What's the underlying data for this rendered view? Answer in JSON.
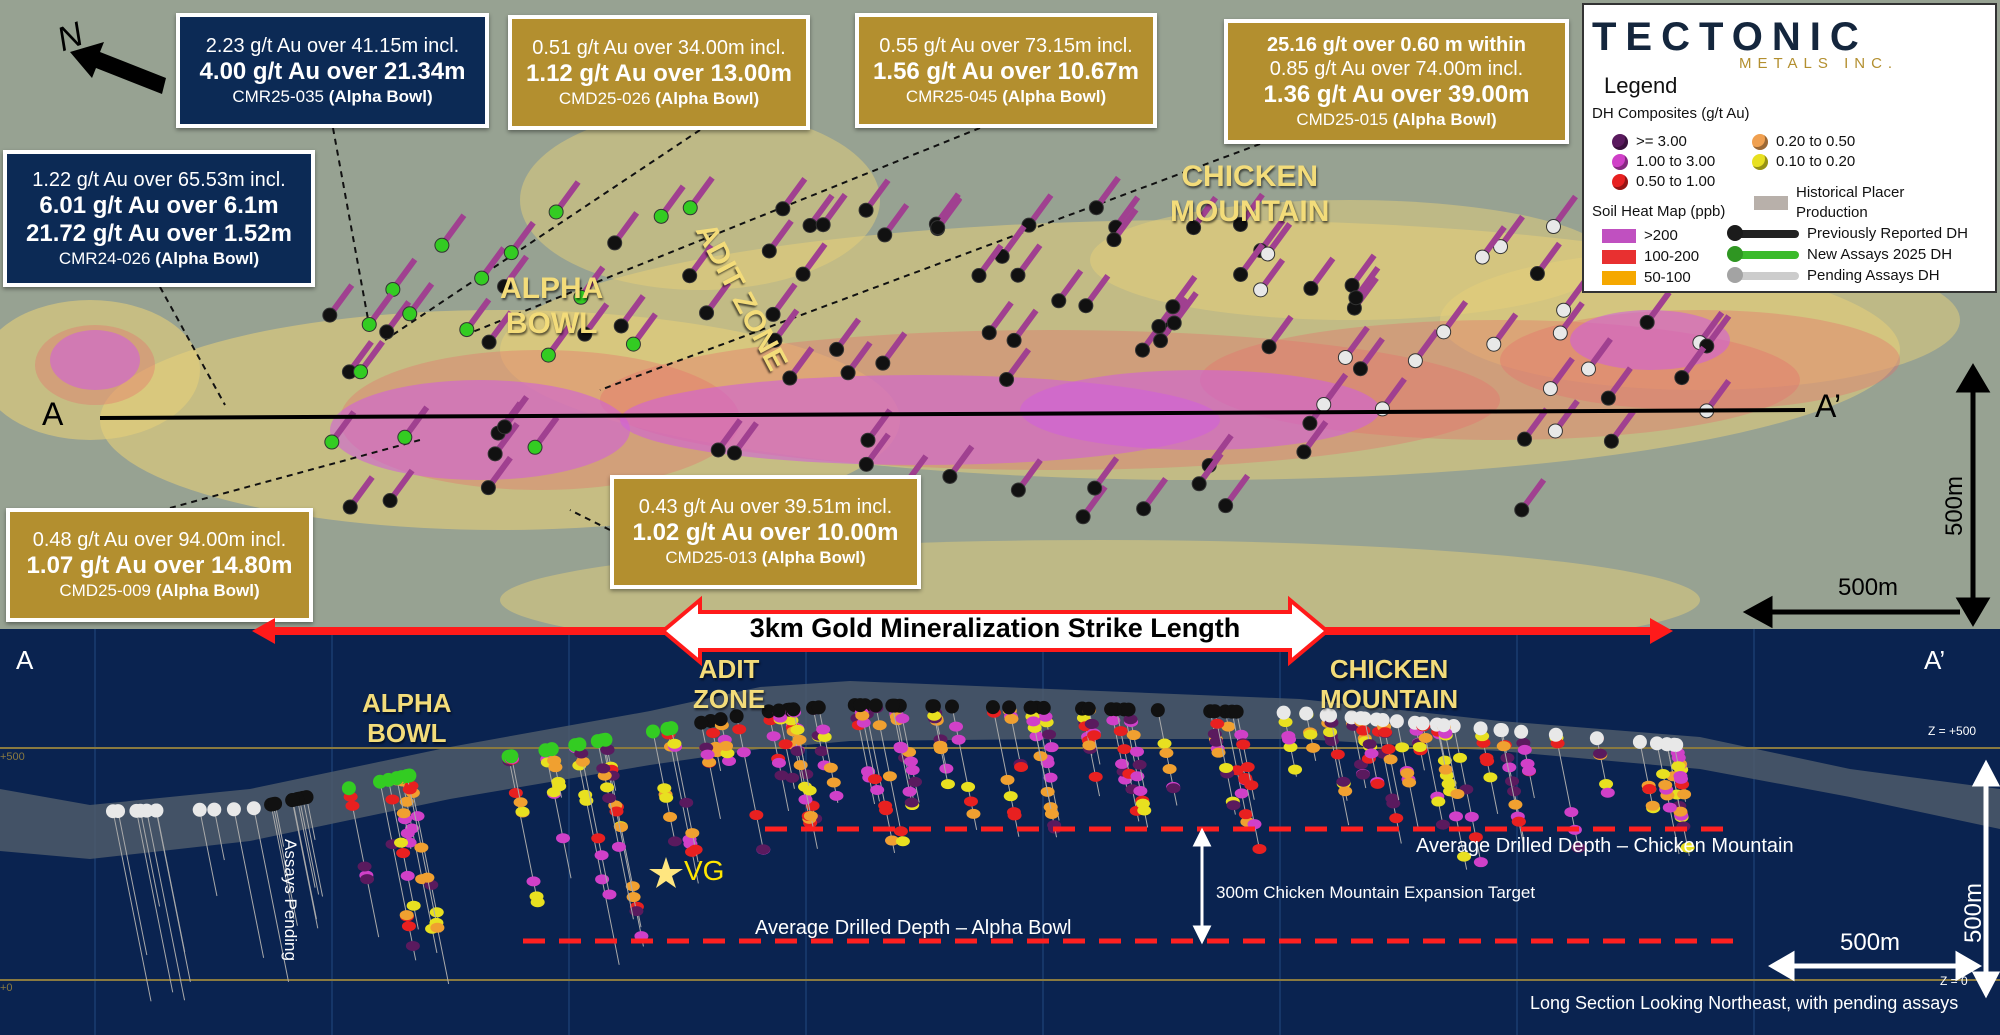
{
  "colors": {
    "navy": "#0c2a55",
    "gold": "#b38f2f",
    "zone_label": "#f3dc7a",
    "strike_red": "#ff1a1a",
    "ge3": "#5a1a5e",
    "1to3": "#d040c8",
    "05to1": "#e82020",
    "02to05": "#f0a050",
    "01to02": "#e8e020",
    "soil_gt200": "#c050c0",
    "soil_100_200": "#e83030",
    "soil_50_100": "#f5a800",
    "placer": "#b8b0aa",
    "prev_dh": "#222222",
    "new_dh": "#3bbb2b",
    "pending_dh": "#cccccc"
  },
  "north_label": "N",
  "callouts": [
    {
      "style": "navy",
      "lines": [
        {
          "t": "2.23 g/t Au over 41.15m incl.",
          "w": "n"
        },
        {
          "t": "4.00 g/t Au over 21.34m",
          "w": "b"
        }
      ],
      "hole": "CMR25-035",
      "zone": "(Alpha Bowl)"
    },
    {
      "style": "gold",
      "lines": [
        {
          "t": "0.51 g/t Au over 34.00m incl.",
          "w": "n"
        },
        {
          "t": "1.12 g/t Au over 13.00m",
          "w": "b"
        }
      ],
      "hole": "CMD25-026",
      "zone": "(Alpha Bowl)"
    },
    {
      "style": "gold",
      "lines": [
        {
          "t": "0.55 g/t Au over 73.15m incl.",
          "w": "n"
        },
        {
          "t": "1.56 g/t Au over 10.67m",
          "w": "b"
        }
      ],
      "hole": "CMR25-045",
      "zone": "(Alpha Bowl)"
    },
    {
      "style": "gold",
      "lines": [
        {
          "t": "25.16 g/t over 0.60 m within",
          "w": "b2"
        },
        {
          "t": "0.85 g/t Au over 74.00m incl.",
          "w": "n"
        },
        {
          "t": "1.36 g/t Au over 39.00m",
          "w": "b"
        }
      ],
      "hole": "CMD25-015",
      "zone": "(Alpha Bowl)"
    },
    {
      "style": "navy",
      "lines": [
        {
          "t": "1.22 g/t Au over 65.53m incl.",
          "w": "n"
        },
        {
          "t": "6.01 g/t Au over 6.1m",
          "w": "b"
        },
        {
          "t": "21.72 g/t Au over 1.52m",
          "w": "b"
        }
      ],
      "hole": "CMR24-026",
      "zone": "(Alpha Bowl)"
    },
    {
      "style": "gold",
      "lines": [
        {
          "t": "0.48 g/t Au over 94.00m incl.",
          "w": "n"
        },
        {
          "t": "1.07 g/t Au over 14.80m",
          "w": "b"
        }
      ],
      "hole": "CMD25-009",
      "zone": "(Alpha Bowl)"
    },
    {
      "style": "gold",
      "lines": [
        {
          "t": "0.43 g/t Au over 39.51m incl.",
          "w": "n"
        },
        {
          "t": "1.02 g/t Au over 10.00m",
          "w": "b"
        }
      ],
      "hole": "CMD25-013",
      "zone": "(Alpha Bowl)"
    }
  ],
  "map_labels": {
    "alpha_bowl": [
      "ALPHA",
      "BOWL"
    ],
    "adit_zone": "ADIT ZONE",
    "chicken_mountain": [
      "CHICKEN",
      "MOUNTAIN"
    ],
    "a": "A",
    "a_prime": "A’",
    "scale_v": "500m",
    "scale_h": "500m"
  },
  "legend": {
    "logo": "TECTONIC",
    "logo_sub": "METALS INC.",
    "title": "Legend",
    "dh_title": "DH Composites (g/t Au)",
    "dh_items": [
      {
        "label": ">= 3.00",
        "color": "#5a1a5e"
      },
      {
        "label": "1.00 to 3.00",
        "color": "#d040c8"
      },
      {
        "label": "0.50 to 1.00",
        "color": "#e82020"
      },
      {
        "label": "0.20 to 0.50",
        "color": "#f0a050"
      },
      {
        "label": "0.10 to 0.20",
        "color": "#e8e020"
      }
    ],
    "placer": [
      "Historical Placer",
      "Production"
    ],
    "soil_title": "Soil Heat Map (ppb)",
    "soil_items": [
      {
        "label": ">200",
        "color": "#c050c0"
      },
      {
        "label": "100-200",
        "color": "#e83030"
      },
      {
        "label": "50-100",
        "color": "#f5a800"
      }
    ],
    "dh_types": [
      {
        "label": "Previously Reported DH",
        "color": "#222222"
      },
      {
        "label": "New Assays 2025 DH",
        "color": "#3bbb2b"
      },
      {
        "label": "Pending Assays DH",
        "color": "#cccccc"
      }
    ]
  },
  "strike": "3km Gold Mineralization Strike Length",
  "section": {
    "a": "A",
    "a_prime": "A’",
    "alpha_bowl": [
      "ALPHA",
      "BOWL"
    ],
    "adit_zone": [
      "ADIT",
      "ZONE"
    ],
    "chicken_mountain": [
      "CHICKEN",
      "MOUNTAIN"
    ],
    "z500": "Z = +500",
    "z0": "Z = 0",
    "elev_500": "+500",
    "elev_0": "+0",
    "avg_cm": "Average Drilled Depth – Chicken Mountain",
    "avg_ab": "Average Drilled Depth – Alpha Bowl",
    "expansion": "300m Chicken Mountain Expansion Target",
    "vg": "VG",
    "assays_pending": "Assays Pending",
    "scale_v": "500m",
    "scale_h": "500m",
    "caption": "Long Section Looking Northeast, with pending assays"
  }
}
